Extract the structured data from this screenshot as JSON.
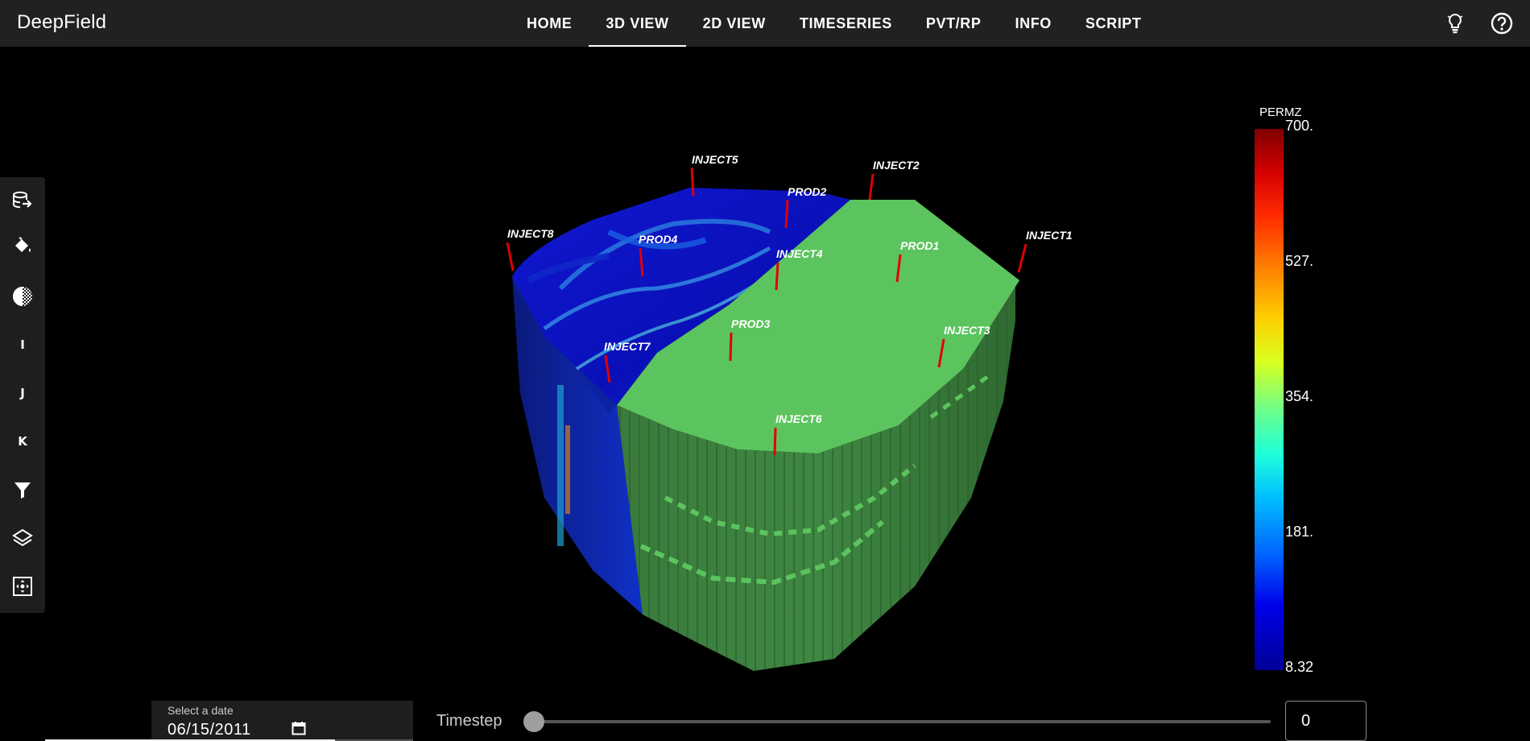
{
  "app": {
    "title": "DeepField"
  },
  "nav": {
    "tabs": [
      {
        "label": "HOME",
        "active": false
      },
      {
        "label": "3D VIEW",
        "active": true
      },
      {
        "label": "2D VIEW",
        "active": false
      },
      {
        "label": "TIMESERIES",
        "active": false
      },
      {
        "label": "PVT/RP",
        "active": false
      },
      {
        "label": "INFO",
        "active": false
      },
      {
        "label": "SCRIPT",
        "active": false
      }
    ]
  },
  "header_icons": [
    "lightbulb-icon",
    "help-icon"
  ],
  "toolbar": {
    "tools": [
      {
        "name": "load-data-tool",
        "icon": "database-arrow-icon"
      },
      {
        "name": "paint-tool",
        "icon": "paint-bucket-icon"
      },
      {
        "name": "opacity-tool",
        "icon": "opacity-sphere-icon"
      },
      {
        "name": "slice-i-tool",
        "letter": "I"
      },
      {
        "name": "slice-j-tool",
        "letter": "J"
      },
      {
        "name": "slice-k-tool",
        "letter": "K"
      },
      {
        "name": "filter-tool",
        "icon": "filter-icon"
      },
      {
        "name": "layers-tool",
        "icon": "layers-icon"
      },
      {
        "name": "camera-reset-tool",
        "icon": "camera-reset-icon"
      }
    ]
  },
  "scene": {
    "wells": [
      "INJECT5",
      "INJECT2",
      "PROD2",
      "INJECT8",
      "PROD4",
      "INJECT1",
      "PROD1",
      "INJECT4",
      "PROD3",
      "INJECT3",
      "INJECT7",
      "INJECT6"
    ],
    "well_color": "#e00000",
    "top_colors": {
      "low": "#0a14c8",
      "high": "#4fd2e0",
      "green": "#5cc45e"
    },
    "side_color": "#3d7a3e"
  },
  "colorbar": {
    "title": "PERMZ",
    "ticks": [
      "700.",
      "527.",
      "354.",
      "181.",
      "8.32"
    ]
  },
  "date_picker": {
    "caption": "Select a date",
    "value": "06/15/2011"
  },
  "timestep": {
    "label": "Timestep",
    "value": "0",
    "position": 0
  }
}
